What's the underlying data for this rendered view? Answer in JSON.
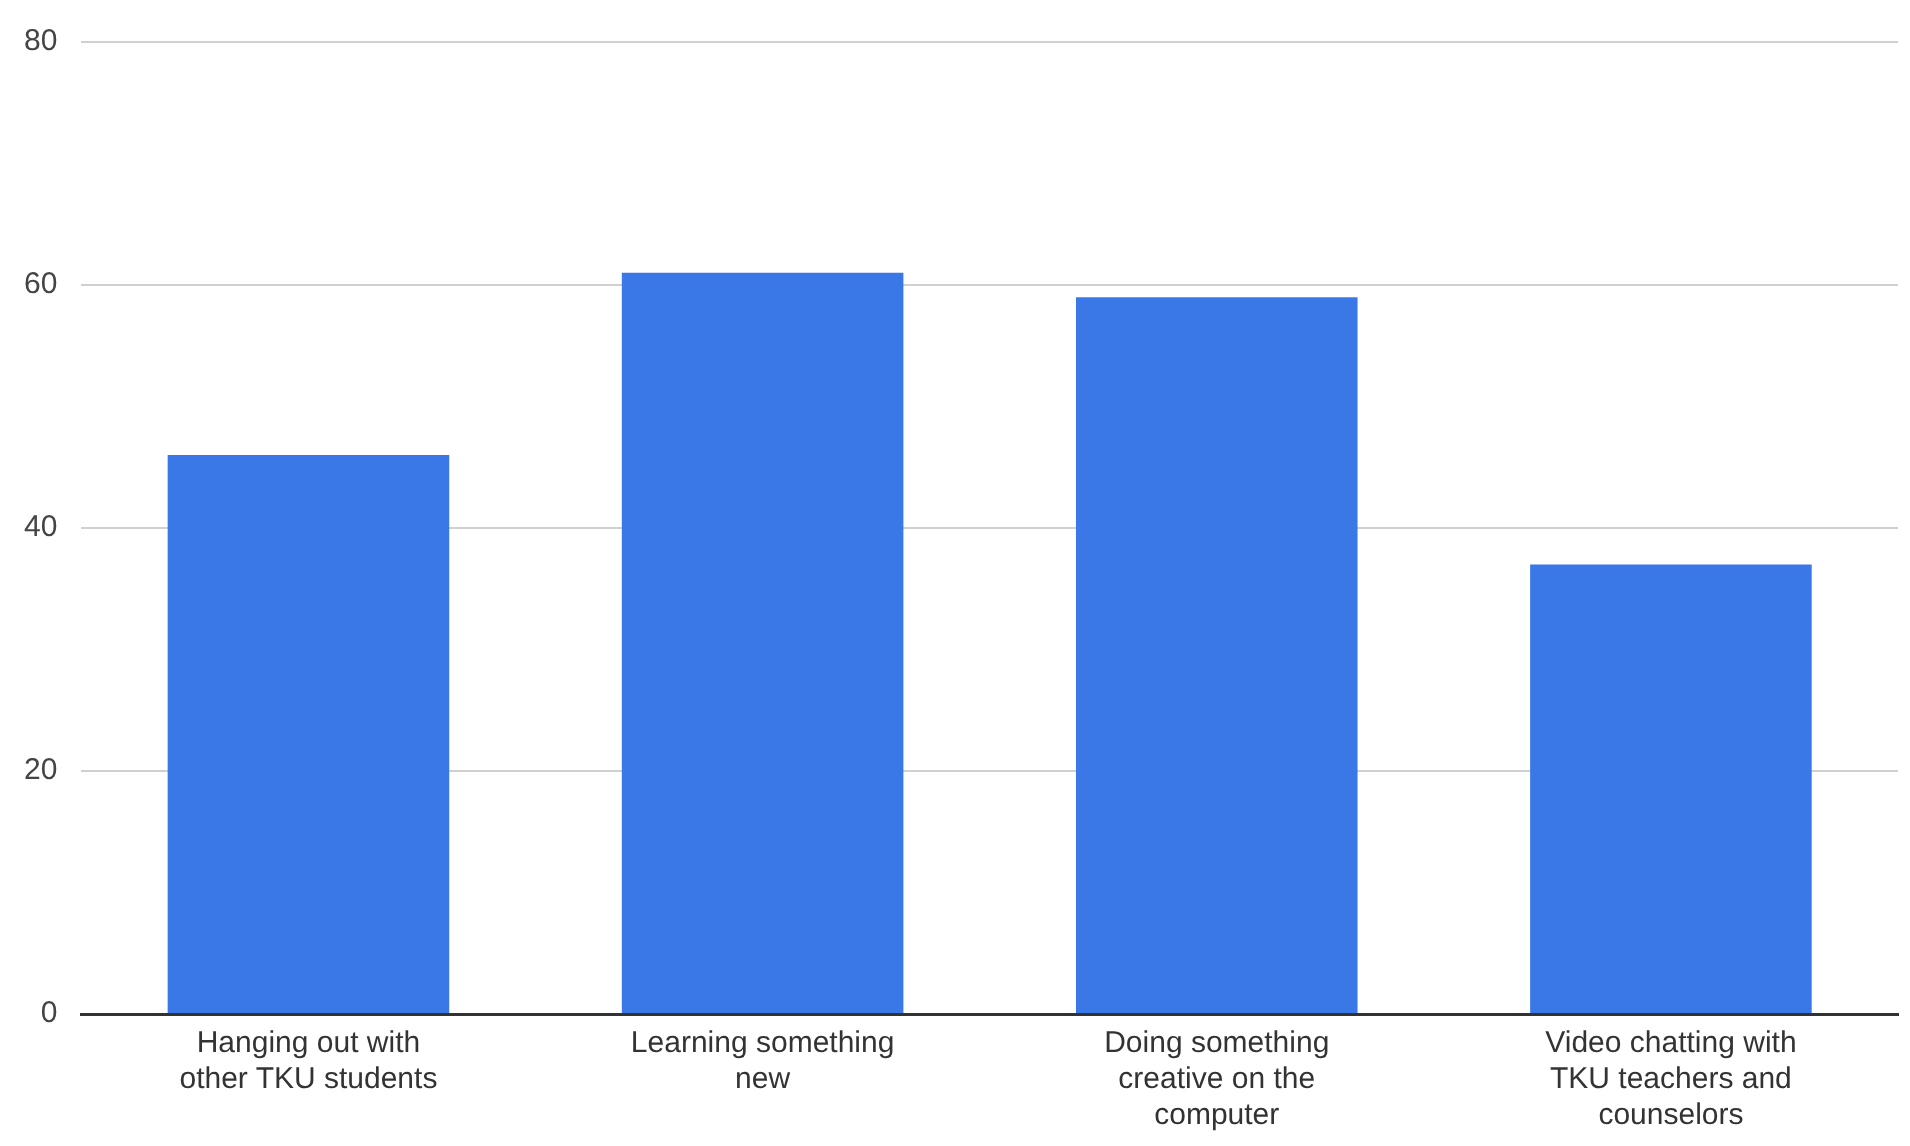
{
  "chart_data": {
    "type": "bar",
    "categories": [
      "Hanging out with other TKU students",
      "Learning something new",
      "Doing something creative on the computer",
      "Video chatting with TKU teachers and counselors"
    ],
    "values": [
      46,
      61,
      59,
      37
    ],
    "color": "#3b78e7",
    "ylim": [
      0,
      80
    ],
    "yticks": [
      0,
      20,
      40,
      60,
      80
    ],
    "grid": "y",
    "legend": false
  }
}
